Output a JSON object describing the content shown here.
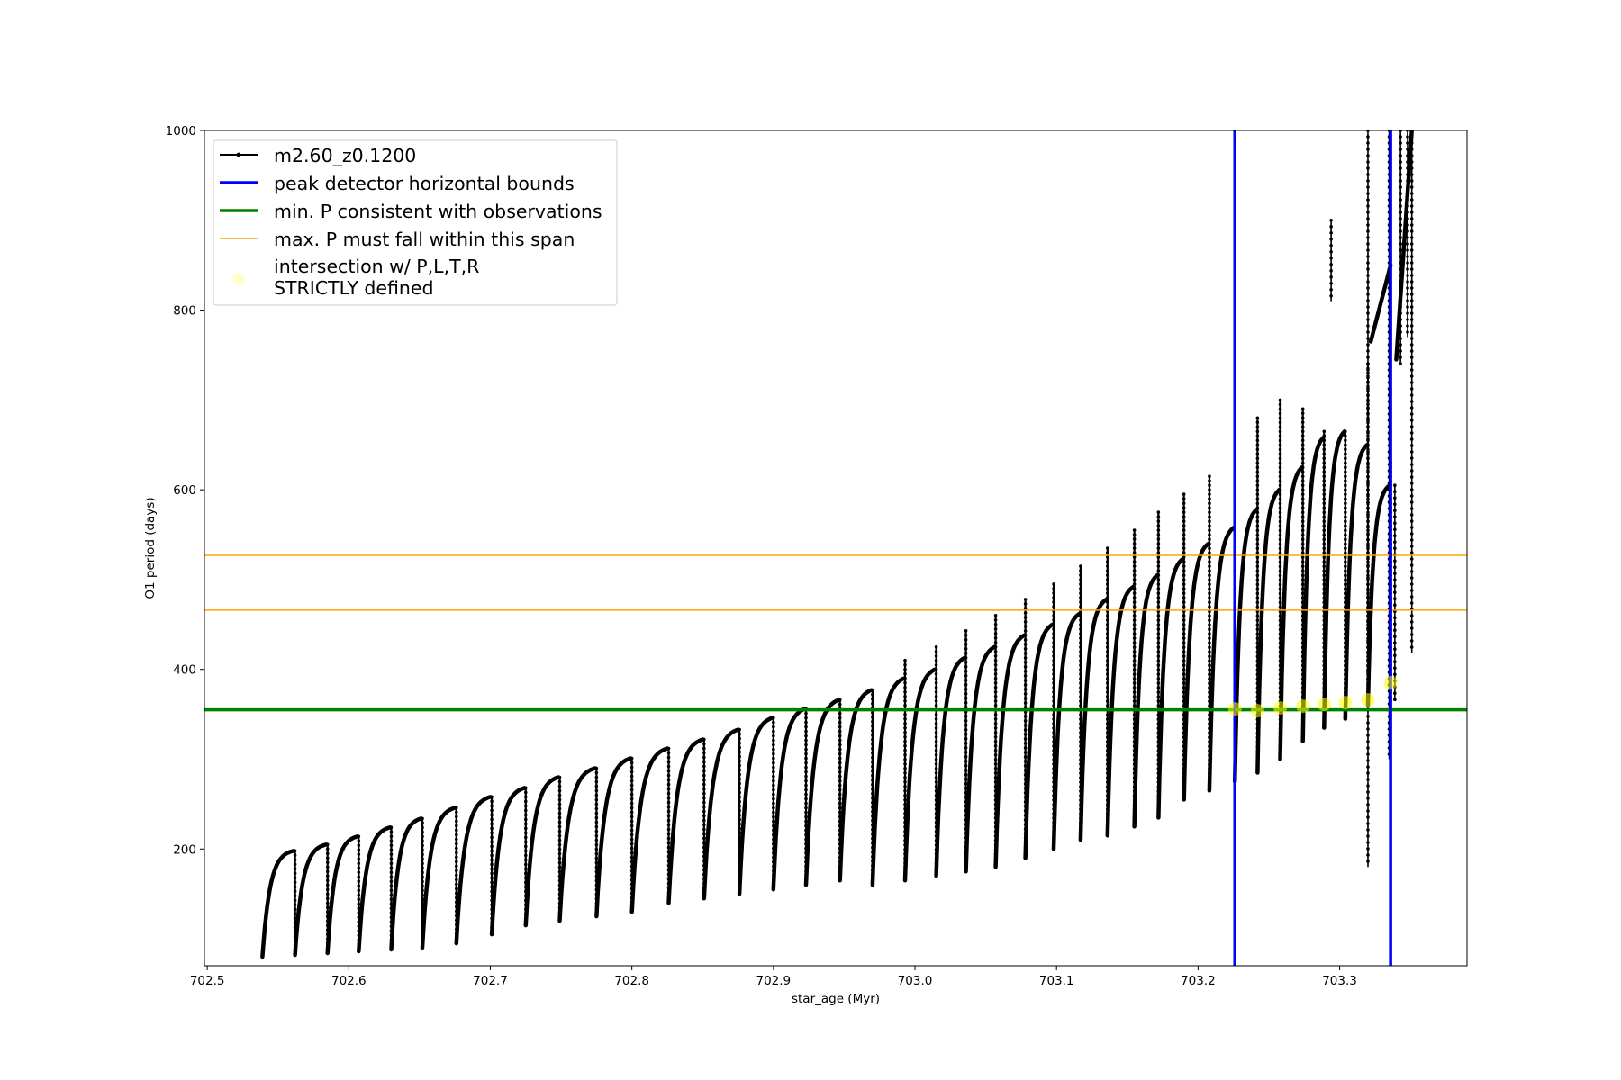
{
  "chart_data": {
    "type": "line",
    "title": "",
    "xlabel": "star_age (Myr)",
    "ylabel": "O1 period (days)",
    "xlim": [
      702.498,
      703.39
    ],
    "ylim": [
      70,
      1000
    ],
    "x_ticks": [
      702.5,
      702.6,
      702.7,
      702.8,
      702.9,
      703.0,
      703.1,
      703.2,
      703.3
    ],
    "x_tick_labels": [
      "702.5",
      "702.6",
      "702.7",
      "702.8",
      "702.9",
      "703.0",
      "703.1",
      "703.2",
      "703.3"
    ],
    "y_ticks": [
      200,
      400,
      600,
      800,
      1000
    ],
    "y_tick_labels": [
      "200",
      "400",
      "600",
      "800",
      "1000"
    ],
    "grid": false,
    "legend": {
      "placement": "upper-left",
      "entries": [
        {
          "label": "m2.60_z0.1200",
          "style": "line-dots",
          "color": "#000000"
        },
        {
          "label": "peak detector horizontal bounds",
          "style": "line",
          "color": "#0000ff"
        },
        {
          "label": "min. P consistent with observations",
          "style": "line",
          "color": "#008000"
        },
        {
          "label": "max. P must fall within this span",
          "style": "thin-line",
          "color": "#ffa500"
        },
        {
          "label_lines": [
            "intersection w/ P,L,T,R",
            "STRICTLY defined"
          ],
          "style": "marker",
          "color": "#ffff00"
        }
      ]
    },
    "series": [
      {
        "name": "m2.60_z0.1200",
        "color": "#000000",
        "cycles": [
          {
            "start": 702.539,
            "end": 702.562,
            "pmin": 80,
            "pmax": 198,
            "spike": 170
          },
          {
            "start": 702.562,
            "end": 702.585,
            "pmin": 82,
            "pmax": 205,
            "spike": 205
          },
          {
            "start": 702.585,
            "end": 702.607,
            "pmin": 84,
            "pmax": 214,
            "spike": 214
          },
          {
            "start": 702.607,
            "end": 702.63,
            "pmin": 86,
            "pmax": 224,
            "spike": 224
          },
          {
            "start": 702.63,
            "end": 702.652,
            "pmin": 88,
            "pmax": 234,
            "spike": 234
          },
          {
            "start": 702.652,
            "end": 702.676,
            "pmin": 90,
            "pmax": 246,
            "spike": 246
          },
          {
            "start": 702.676,
            "end": 702.701,
            "pmin": 95,
            "pmax": 258,
            "spike": 258
          },
          {
            "start": 702.701,
            "end": 702.725,
            "pmin": 105,
            "pmax": 268,
            "spike": 268
          },
          {
            "start": 702.725,
            "end": 702.749,
            "pmin": 115,
            "pmax": 280,
            "spike": 280
          },
          {
            "start": 702.749,
            "end": 702.775,
            "pmin": 120,
            "pmax": 290,
            "spike": 290
          },
          {
            "start": 702.775,
            "end": 702.8,
            "pmin": 125,
            "pmax": 301,
            "spike": 301
          },
          {
            "start": 702.8,
            "end": 702.826,
            "pmin": 130,
            "pmax": 312,
            "spike": 312
          },
          {
            "start": 702.826,
            "end": 702.851,
            "pmin": 140,
            "pmax": 322,
            "spike": 322
          },
          {
            "start": 702.851,
            "end": 702.876,
            "pmin": 145,
            "pmax": 333,
            "spike": 333
          },
          {
            "start": 702.876,
            "end": 702.9,
            "pmin": 150,
            "pmax": 346,
            "spike": 346
          },
          {
            "start": 702.9,
            "end": 702.923,
            "pmin": 155,
            "pmax": 356,
            "spike": 356
          },
          {
            "start": 702.923,
            "end": 702.947,
            "pmin": 160,
            "pmax": 366,
            "spike": 366
          },
          {
            "start": 702.947,
            "end": 702.97,
            "pmin": 165,
            "pmax": 377,
            "spike": 377
          },
          {
            "start": 702.97,
            "end": 702.993,
            "pmin": 160,
            "pmax": 390,
            "spike": 410
          },
          {
            "start": 702.993,
            "end": 703.015,
            "pmin": 165,
            "pmax": 400,
            "spike": 425
          },
          {
            "start": 703.015,
            "end": 703.036,
            "pmin": 170,
            "pmax": 413,
            "spike": 443
          },
          {
            "start": 703.036,
            "end": 703.057,
            "pmin": 175,
            "pmax": 425,
            "spike": 460
          },
          {
            "start": 703.057,
            "end": 703.078,
            "pmin": 180,
            "pmax": 438,
            "spike": 478
          },
          {
            "start": 703.078,
            "end": 703.098,
            "pmin": 190,
            "pmax": 450,
            "spike": 495
          },
          {
            "start": 703.098,
            "end": 703.117,
            "pmin": 200,
            "pmax": 462,
            "spike": 515
          },
          {
            "start": 703.117,
            "end": 703.136,
            "pmin": 210,
            "pmax": 478,
            "spike": 535
          },
          {
            "start": 703.136,
            "end": 703.155,
            "pmin": 215,
            "pmax": 492,
            "spike": 555
          },
          {
            "start": 703.155,
            "end": 703.172,
            "pmin": 225,
            "pmax": 505,
            "spike": 575
          },
          {
            "start": 703.172,
            "end": 703.19,
            "pmin": 235,
            "pmax": 523,
            "spike": 595
          },
          {
            "start": 703.19,
            "end": 703.208,
            "pmin": 255,
            "pmax": 540,
            "spike": 615
          },
          {
            "start": 703.208,
            "end": 703.226,
            "pmin": 265,
            "pmax": 558,
            "spike": 630
          },
          {
            "start": 703.226,
            "end": 703.242,
            "pmin": 275,
            "pmax": 578,
            "spike": 680
          },
          {
            "start": 703.242,
            "end": 703.258,
            "pmin": 285,
            "pmax": 600,
            "spike": 700
          },
          {
            "start": 703.258,
            "end": 703.274,
            "pmin": 300,
            "pmax": 625,
            "spike": 690
          },
          {
            "start": 703.274,
            "end": 703.289,
            "pmin": 320,
            "pmax": 658,
            "spike": 665
          },
          {
            "start": 703.289,
            "end": 703.304,
            "pmin": 335,
            "pmax": 665,
            "spike": 662
          },
          {
            "start": 703.304,
            "end": 703.32,
            "pmin": 345,
            "pmax": 650,
            "spike": 740
          },
          {
            "start": 703.32,
            "end": 703.336,
            "pmin": 360,
            "pmax": 605,
            "spike": 630
          }
        ],
        "late_segments": [
          {
            "x0": 703.322,
            "x1": 703.336,
            "y0": 765,
            "y1": 850
          },
          {
            "x0": 703.34,
            "x1": 703.351,
            "y0": 745,
            "y1": 1000
          }
        ],
        "late_verticals": [
          {
            "x": 703.294,
            "y0": 810,
            "y1": 900
          },
          {
            "x": 703.32,
            "y0": 180,
            "y1": 1000
          },
          {
            "x": 703.335,
            "y0": 300,
            "y1": 1000
          },
          {
            "x": 703.339,
            "y0": 365,
            "y1": 605
          },
          {
            "x": 703.343,
            "y0": 740,
            "y1": 1000
          },
          {
            "x": 703.348,
            "y0": 770,
            "y1": 1000
          },
          {
            "x": 703.351,
            "y0": 418,
            "y1": 1000
          }
        ]
      }
    ],
    "vertical_lines": [
      {
        "x": 703.226,
        "color": "#0000ff",
        "role": "peak detector horizontal bounds"
      },
      {
        "x": 703.336,
        "color": "#0000ff",
        "role": "peak detector horizontal bounds"
      }
    ],
    "horizontal_lines": [
      {
        "y": 355,
        "color": "#008000",
        "role": "min. P consistent with observations"
      },
      {
        "y": 466,
        "color": "#ffa500",
        "role": "max. P must fall within this span"
      },
      {
        "y": 527,
        "color": "#ffa500",
        "role": "max. P must fall within this span"
      }
    ],
    "intersection_points": [
      {
        "x": 703.226,
        "y": 356
      },
      {
        "x": 703.242,
        "y": 354
      },
      {
        "x": 703.258,
        "y": 357
      },
      {
        "x": 703.274,
        "y": 359
      },
      {
        "x": 703.289,
        "y": 361
      },
      {
        "x": 703.304,
        "y": 363
      },
      {
        "x": 703.32,
        "y": 366
      },
      {
        "x": 703.336,
        "y": 385
      }
    ]
  }
}
